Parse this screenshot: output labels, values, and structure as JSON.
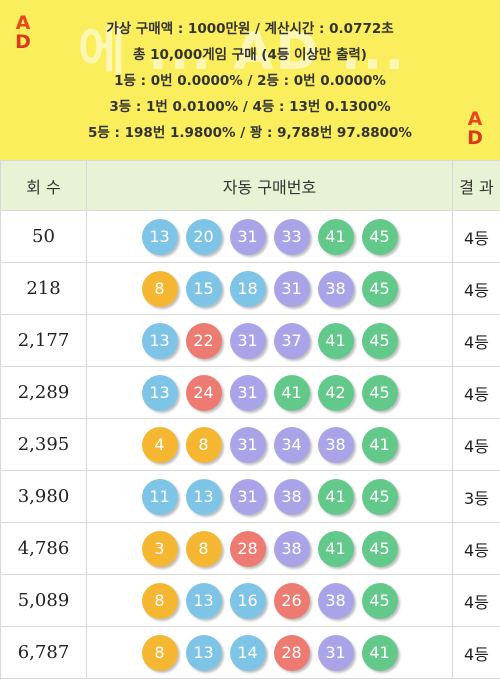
{
  "banner": {
    "watermark": "에 ... AD ...",
    "lines": [
      "가상 구매액 : 1000만원 / 계산시간 : 0.0772초",
      "총 10,000게임 구매 (4등 이상만 출력)",
      "1등 : 0번 0.0000% / 2등 : 0번 0.0000%",
      "3등 : 1번 0.0100% / 4등 : 13번 0.1300%",
      "5등 : 198번 1.9800% / 꽝 : 9,788번 97.8800%"
    ],
    "ad_letters": [
      "A",
      "D"
    ]
  },
  "table": {
    "headers": [
      "회 수",
      "자동 구매번호",
      "결 과"
    ],
    "rows": [
      {
        "round": "50",
        "numbers": [
          "13",
          "20",
          "31",
          "33",
          "41",
          "45"
        ],
        "result": "4등"
      },
      {
        "round": "218",
        "numbers": [
          "8",
          "15",
          "18",
          "31",
          "38",
          "45"
        ],
        "result": "4등"
      },
      {
        "round": "2,177",
        "numbers": [
          "13",
          "22",
          "31",
          "37",
          "41",
          "45"
        ],
        "result": "4등"
      },
      {
        "round": "2,289",
        "numbers": [
          "13",
          "24",
          "31",
          "41",
          "42",
          "45"
        ],
        "result": "4등"
      },
      {
        "round": "2,395",
        "numbers": [
          "4",
          "8",
          "31",
          "34",
          "38",
          "41"
        ],
        "result": "4등"
      },
      {
        "round": "3,980",
        "numbers": [
          "11",
          "13",
          "31",
          "38",
          "41",
          "45"
        ],
        "result": "3등"
      },
      {
        "round": "4,786",
        "numbers": [
          "3",
          "8",
          "28",
          "38",
          "41",
          "45"
        ],
        "result": "4등"
      },
      {
        "round": "5,089",
        "numbers": [
          "8",
          "13",
          "16",
          "26",
          "38",
          "45"
        ],
        "result": "4등"
      },
      {
        "round": "6,787",
        "numbers": [
          "8",
          "13",
          "14",
          "28",
          "31",
          "41"
        ],
        "result": "4등"
      }
    ]
  },
  "ball_colors": {
    "1-10": "#f5b731",
    "11-20": "#7ec4e6",
    "21-30": "#ee7b72",
    "31-40": "#a9a4e8",
    "41-45": "#63c98a"
  }
}
